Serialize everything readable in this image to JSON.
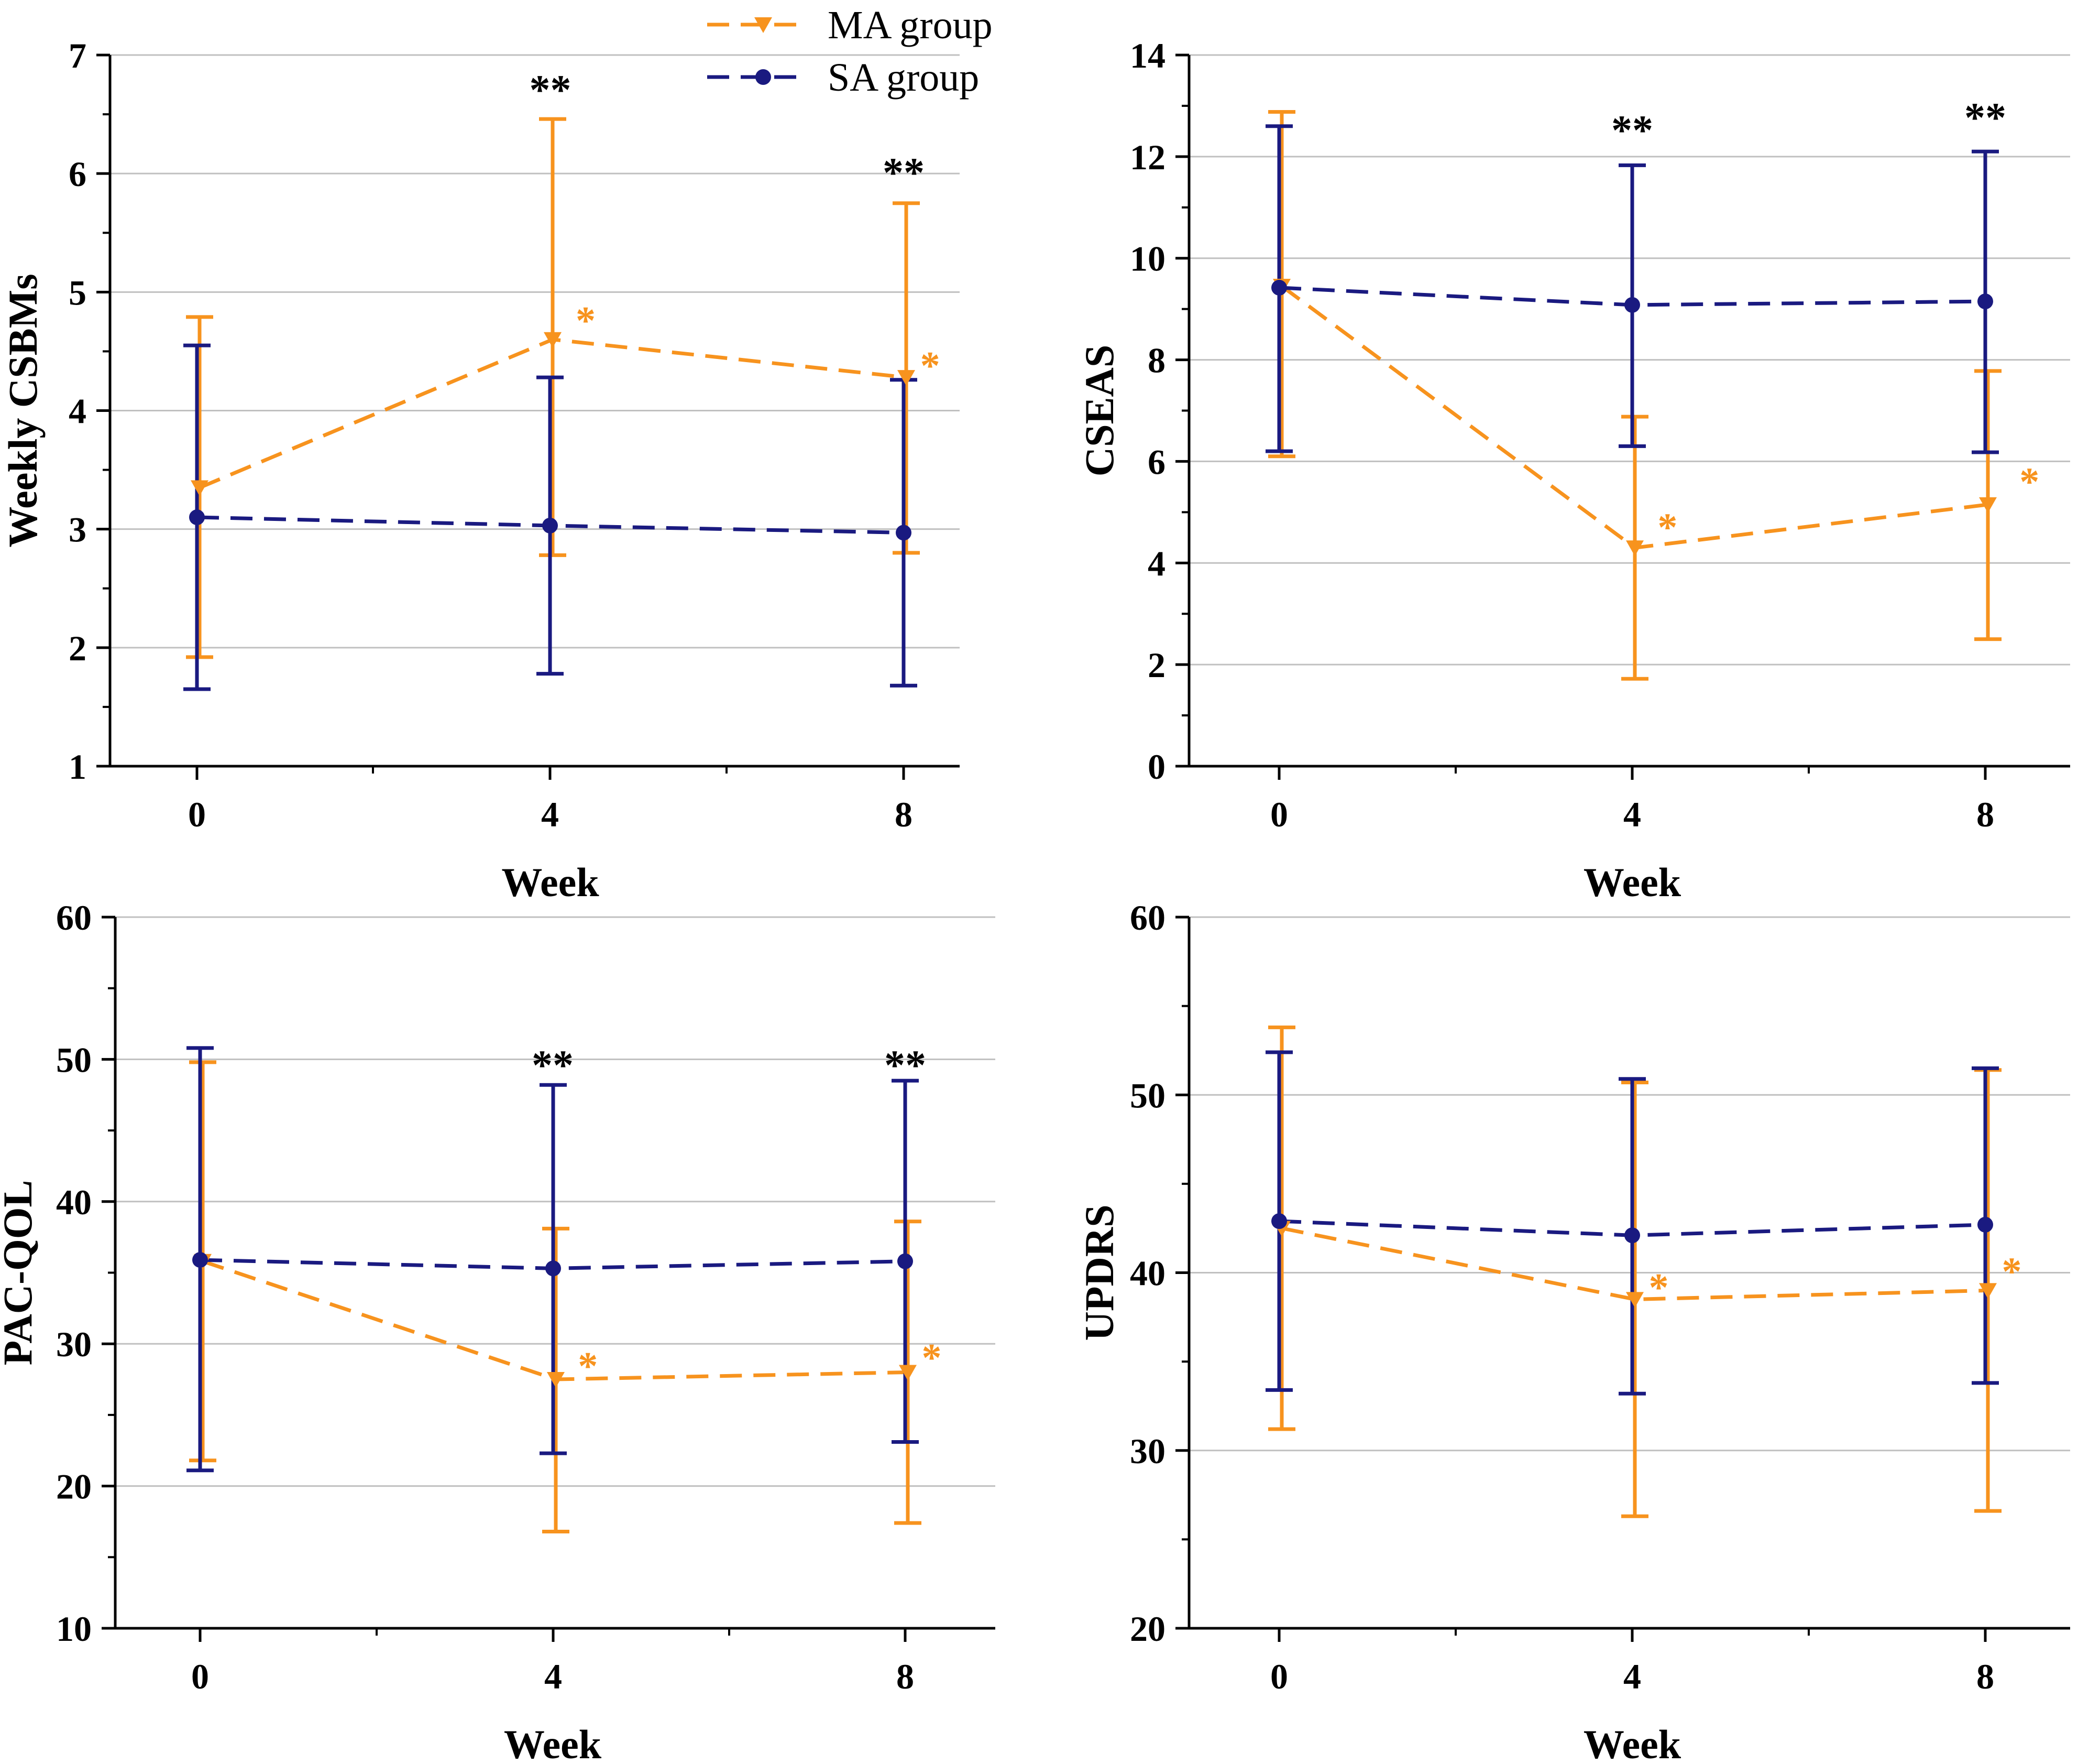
{
  "colors": {
    "ma": "#f7931e",
    "sa": "#1a1a80",
    "grid": "#c0c0c0",
    "axis": "#000000"
  },
  "legend": [
    {
      "key": "ma",
      "label": "MA group",
      "marker": "triangle-down"
    },
    {
      "key": "sa",
      "label": "SA group",
      "marker": "circle"
    }
  ],
  "chart_data": [
    {
      "type": "line",
      "xlabel": "Week",
      "ylabel": "Weekly CSBMs",
      "x": [
        0,
        4,
        8
      ],
      "xlim": [
        -1,
        9
      ],
      "ylim": [
        1,
        7
      ],
      "yticks": [
        1,
        2,
        3,
        4,
        5,
        6,
        7
      ],
      "series": [
        {
          "name": "MA group",
          "key": "ma",
          "values": [
            3.35,
            4.6,
            4.28
          ],
          "err_low": [
            1.92,
            2.78,
            2.8
          ],
          "err_high": [
            4.79,
            6.46,
            5.75
          ]
        },
        {
          "name": "SA group",
          "key": "sa",
          "values": [
            3.1,
            3.03,
            2.97
          ],
          "err_low": [
            1.65,
            1.78,
            1.68
          ],
          "err_high": [
            4.55,
            4.28,
            4.26
          ]
        }
      ],
      "annotations": [
        {
          "text": "**",
          "x": 4,
          "y": 6.72,
          "color": "black"
        },
        {
          "text": "**",
          "x": 8,
          "y": 6.02,
          "color": "black"
        },
        {
          "text": "*",
          "x": 4.4,
          "y": 4.78,
          "color": "orange"
        },
        {
          "text": "*",
          "x": 8.3,
          "y": 4.4,
          "color": "orange"
        }
      ]
    },
    {
      "type": "line",
      "xlabel": "Week",
      "ylabel": "CSEAS",
      "x": [
        0,
        4,
        8
      ],
      "xlim": [
        -1,
        9
      ],
      "ylim": [
        0,
        14
      ],
      "yticks": [
        0,
        2,
        4,
        6,
        8,
        10,
        12,
        14
      ],
      "series": [
        {
          "name": "MA group",
          "key": "ma",
          "values": [
            9.45,
            4.3,
            5.15
          ],
          "err_low": [
            6.1,
            1.72,
            2.5
          ],
          "err_high": [
            12.88,
            6.88,
            7.78
          ]
        },
        {
          "name": "SA group",
          "key": "sa",
          "values": [
            9.42,
            9.08,
            9.15
          ],
          "err_low": [
            6.2,
            6.3,
            6.18
          ],
          "err_high": [
            12.6,
            11.83,
            12.1
          ]
        }
      ],
      "annotations": [
        {
          "text": "**",
          "x": 4,
          "y": 12.55,
          "color": "black"
        },
        {
          "text": "**",
          "x": 8,
          "y": 12.8,
          "color": "black"
        },
        {
          "text": "*",
          "x": 4.4,
          "y": 4.75,
          "color": "orange"
        },
        {
          "text": "*",
          "x": 8.5,
          "y": 5.65,
          "color": "orange"
        }
      ]
    },
    {
      "type": "line",
      "xlabel": "Week",
      "ylabel": "PAC-QOL",
      "x": [
        0,
        4,
        8
      ],
      "xlim": [
        -1,
        9
      ],
      "ylim": [
        10,
        60
      ],
      "yticks": [
        10,
        20,
        30,
        40,
        50,
        60
      ],
      "series": [
        {
          "name": "MA group",
          "key": "ma",
          "values": [
            35.8,
            27.5,
            28.0
          ],
          "err_low": [
            21.8,
            16.8,
            17.4
          ],
          "err_high": [
            49.8,
            38.1,
            38.6
          ]
        },
        {
          "name": "SA group",
          "key": "sa",
          "values": [
            35.9,
            35.3,
            35.8
          ],
          "err_low": [
            21.1,
            22.3,
            23.1
          ],
          "err_high": [
            50.8,
            48.2,
            48.5
          ]
        }
      ],
      "annotations": [
        {
          "text": "**",
          "x": 4,
          "y": 49.7,
          "color": "black"
        },
        {
          "text": "**",
          "x": 8,
          "y": 49.7,
          "color": "black"
        },
        {
          "text": "*",
          "x": 4.4,
          "y": 28.6,
          "color": "orange"
        },
        {
          "text": "*",
          "x": 8.3,
          "y": 29.2,
          "color": "orange"
        }
      ]
    },
    {
      "type": "line",
      "xlabel": "Week",
      "ylabel": "UPDRS",
      "x": [
        0,
        4,
        8
      ],
      "xlim": [
        -1,
        9
      ],
      "ylim": [
        20,
        60
      ],
      "yticks": [
        20,
        30,
        40,
        50,
        60
      ],
      "series": [
        {
          "name": "MA group",
          "key": "ma",
          "values": [
            42.5,
            38.5,
            39.0
          ],
          "err_low": [
            31.2,
            26.3,
            26.6
          ],
          "err_high": [
            53.8,
            50.7,
            51.4
          ]
        },
        {
          "name": "SA group",
          "key": "sa",
          "values": [
            42.9,
            42.1,
            42.7
          ],
          "err_low": [
            33.4,
            33.2,
            33.8
          ],
          "err_high": [
            52.4,
            50.9,
            51.5
          ]
        }
      ],
      "annotations": [
        {
          "text": "*",
          "x": 4.3,
          "y": 39.3,
          "color": "orange"
        },
        {
          "text": "*",
          "x": 8.3,
          "y": 40.2,
          "color": "orange"
        }
      ]
    }
  ]
}
